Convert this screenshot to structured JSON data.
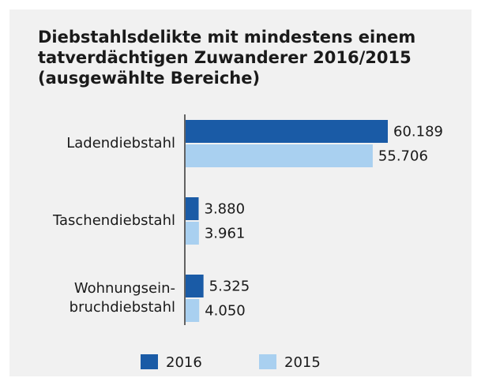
{
  "chart_data": {
    "type": "bar",
    "orientation": "horizontal",
    "title": "Diebstahlsdelikte mit mindestens einem\ntatverdächtigen Zuwanderer 2016/2015\n(ausgewählte Bereiche)",
    "categories": [
      "Ladendiebstahl",
      "Taschendiebstahl",
      "Wohnungsein-\nbruchdiebstahl"
    ],
    "series": [
      {
        "name": "2016",
        "color": "#1a5ba6",
        "values": [
          60189,
          3880,
          5325
        ],
        "value_labels": [
          "60.189",
          "3.880",
          "5.325"
        ]
      },
      {
        "name": "2015",
        "color": "#a9d0f0",
        "values": [
          55706,
          3961,
          4050
        ],
        "value_labels": [
          "55.706",
          "3.961",
          "4.050"
        ]
      }
    ],
    "legend": "bottom"
  }
}
